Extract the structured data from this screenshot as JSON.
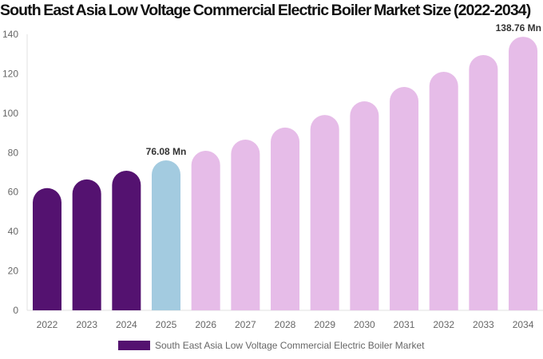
{
  "chart_data": {
    "type": "bar",
    "title": "South East Asia Low Voltage Commercial Electric Boiler Market Size (2022-2034)",
    "categories": [
      "2022",
      "2023",
      "2024",
      "2025",
      "2026",
      "2027",
      "2028",
      "2029",
      "2030",
      "2031",
      "2032",
      "2033",
      "2034"
    ],
    "series": [
      {
        "name": "South East Asia Low Voltage Commercial Electric Boiler Market",
        "values": [
          62.0,
          66.4,
          70.8,
          76.08,
          80.9,
          86.6,
          92.7,
          99.1,
          106.0,
          113.3,
          121.0,
          129.5,
          138.76
        ]
      }
    ],
    "data_labels": {
      "3": "76.08 Mn",
      "12": "138.76 Mn"
    },
    "ylim": [
      0,
      140
    ],
    "yticks": [
      0,
      20,
      40,
      60,
      80,
      100,
      120,
      140
    ],
    "xlabel": "",
    "ylabel": "",
    "grid": false,
    "legend_position": "bottom",
    "colors": {
      "historical": "#541270",
      "current": "#a3cbe0",
      "forecast": "#e6bce8"
    }
  }
}
